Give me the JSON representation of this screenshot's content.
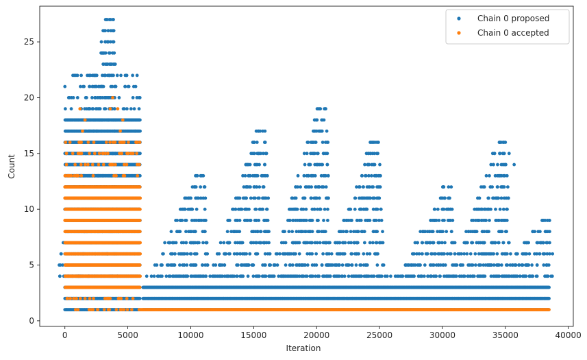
{
  "chart_data": {
    "type": "scatter",
    "title": "",
    "xlabel": "Iteration",
    "ylabel": "Count",
    "xlim": [
      -2000,
      40400
    ],
    "ylim": [
      -0.5,
      28.2
    ],
    "xticks": [
      0,
      5000,
      10000,
      15000,
      20000,
      25000,
      30000,
      35000,
      40000
    ],
    "yticks": [
      0,
      5,
      10,
      15,
      20,
      25
    ],
    "grid": false,
    "legend_position": "top-right",
    "series": [
      {
        "name": "Chain 0 proposed",
        "color": "#1f77b4",
        "segments": [
          {
            "x_start": 0,
            "x_end": 6000,
            "levels": [
              1,
              2,
              3,
              4,
              5,
              6,
              7,
              8,
              9,
              10,
              11,
              12,
              13,
              14,
              15,
              16,
              17,
              18
            ],
            "sparse_levels": [
              19,
              20,
              21,
              22
            ]
          },
          {
            "x_start": 6200,
            "x_end": 38500,
            "levels": [
              1,
              2,
              3
            ],
            "sparse_levels": [
              4
            ]
          }
        ],
        "peaks": [
          {
            "x": 3850,
            "max": 27
          },
          {
            "x": 11000,
            "max": 13
          },
          {
            "x": 15900,
            "max": 17
          },
          {
            "x": 20700,
            "max": 19
          },
          {
            "x": 24900,
            "max": 16
          },
          {
            "x": 30700,
            "max": 12
          },
          {
            "x": 35000,
            "max": 16
          },
          {
            "x": 38500,
            "max": 9
          }
        ],
        "points": [
          {
            "x": 3850,
            "y": 27
          },
          {
            "x": 3880,
            "y": 25
          },
          {
            "x": 3920,
            "y": 24
          },
          {
            "x": 3850,
            "y": 23
          },
          {
            "x": 4000,
            "y": 23
          },
          {
            "x": 4450,
            "y": 22
          },
          {
            "x": 1000,
            "y": 22
          },
          {
            "x": 1300,
            "y": 22
          },
          {
            "x": 4800,
            "y": 22
          },
          {
            "x": 300,
            "y": 20
          },
          {
            "x": 5600,
            "y": 17
          },
          {
            "x": 15900,
            "y": 17
          },
          {
            "x": 20400,
            "y": 17
          },
          {
            "x": 20700,
            "y": 19
          },
          {
            "x": 20900,
            "y": 16
          },
          {
            "x": 24800,
            "y": 16
          },
          {
            "x": 24600,
            "y": 15
          },
          {
            "x": 35000,
            "y": 16
          },
          {
            "x": 35300,
            "y": 15
          },
          {
            "x": 34800,
            "y": 15
          },
          {
            "x": 14800,
            "y": 15
          },
          {
            "x": 15400,
            "y": 15
          },
          {
            "x": 11000,
            "y": 13
          },
          {
            "x": 15700,
            "y": 13
          },
          {
            "x": 35700,
            "y": 14
          },
          {
            "x": 30700,
            "y": 12
          },
          {
            "x": 38500,
            "y": 9
          }
        ]
      },
      {
        "name": "Chain 0 accepted",
        "color": "#ff7f0e",
        "segments": [
          {
            "x_start": 0,
            "x_end": 6000,
            "levels": [
              3,
              4,
              5,
              6,
              7,
              8,
              9,
              10,
              11,
              12
            ],
            "sparse_levels": [
              1,
              2,
              13,
              14,
              15,
              16
            ]
          },
          {
            "x_start": 6000,
            "x_end": 38500,
            "levels": [
              1
            ],
            "sparse_levels": []
          }
        ],
        "points": [
          {
            "x": 3800,
            "y": 20
          },
          {
            "x": 1200,
            "y": 19
          },
          {
            "x": 3600,
            "y": 19
          },
          {
            "x": 4200,
            "y": 19
          },
          {
            "x": 1600,
            "y": 18
          },
          {
            "x": 4600,
            "y": 18
          },
          {
            "x": 1400,
            "y": 17
          },
          {
            "x": 4400,
            "y": 17
          },
          {
            "x": 1300,
            "y": 16
          },
          {
            "x": 2300,
            "y": 16
          },
          {
            "x": 4700,
            "y": 16
          }
        ]
      }
    ]
  }
}
